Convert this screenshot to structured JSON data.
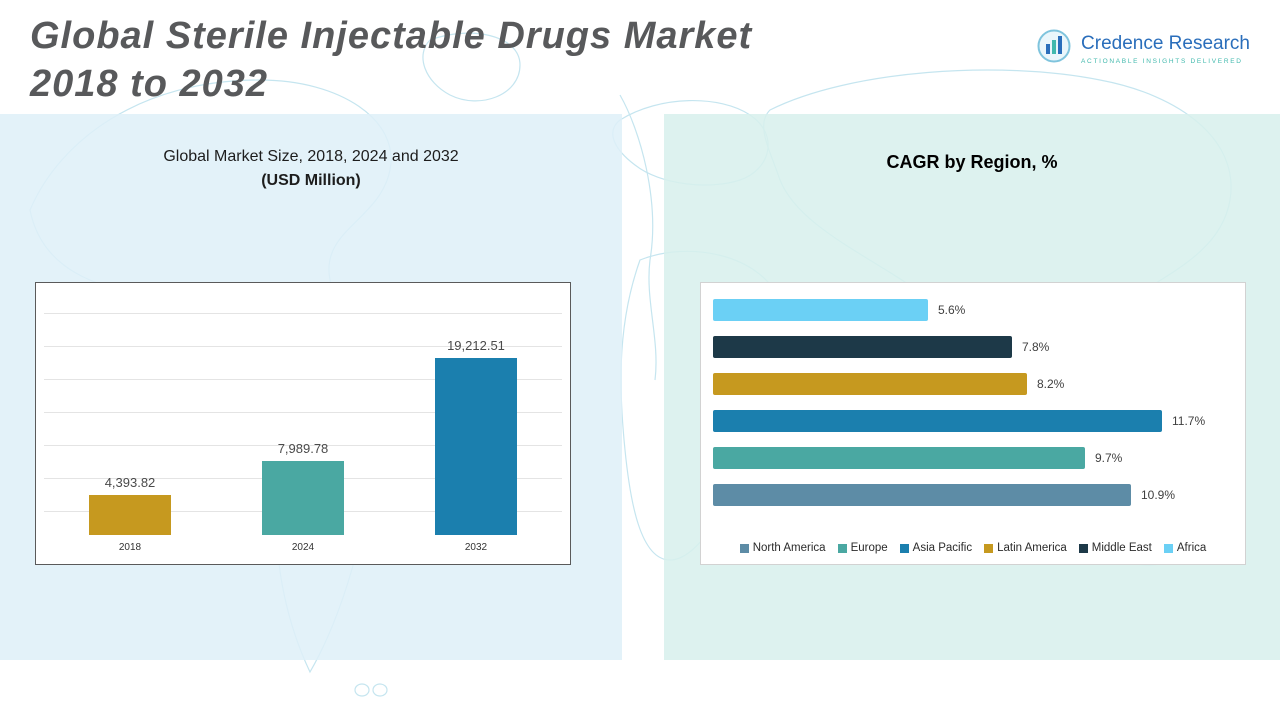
{
  "header": {
    "title_line1": "Global Sterile Injectable Drugs Market",
    "title_line2": "2018 to 2032",
    "logo": {
      "name": "Credence Research",
      "tagline": "Actionable Insights Delivered"
    }
  },
  "panels": {
    "market_size": {
      "title_line1": "Global Market Size, 2018, 2024 and 2032",
      "title_line2": "(USD Million)"
    },
    "cagr": {
      "title": "CAGR by Region, %"
    }
  },
  "chart_data": [
    {
      "type": "bar",
      "title": "Global Market Size, 2018, 2024 and 2032 (USD Million)",
      "categories": [
        "2018",
        "2024",
        "2032"
      ],
      "values": [
        4393.82,
        7989.78,
        19212.51
      ],
      "value_labels": [
        "4,393.82",
        "7,989.78",
        "19,212.51"
      ],
      "colors": [
        "#c6991f",
        "#4aa8a2",
        "#1b7fae"
      ],
      "xlabel": "",
      "ylabel": "USD Million",
      "ylim": [
        0,
        20000
      ],
      "grid": true,
      "legend_position": "none"
    },
    {
      "type": "bar",
      "orientation": "horizontal",
      "title": "CAGR by Region, %",
      "categories": [
        "Africa",
        "Middle East",
        "Latin America",
        "Asia Pacific",
        "Europe",
        "North America"
      ],
      "values": [
        5.6,
        7.8,
        8.2,
        11.7,
        9.7,
        10.9
      ],
      "value_labels": [
        "5.6%",
        "7.8%",
        "8.2%",
        "11.7%",
        "9.7%",
        "10.9%"
      ],
      "colors": [
        "#6bd0f5",
        "#1d3948",
        "#c6991f",
        "#1b7fae",
        "#4aa8a2",
        "#5d8ca6"
      ],
      "xlabel": "CAGR %",
      "xlim": [
        0,
        12
      ],
      "grid": false,
      "legend_position": "bottom",
      "legend": [
        {
          "label": "North America",
          "color": "#5d8ca6"
        },
        {
          "label": "Europe",
          "color": "#4aa8a2"
        },
        {
          "label": "Asia Pacific",
          "color": "#1b7fae"
        },
        {
          "label": "Latin America",
          "color": "#c6991f"
        },
        {
          "label": "Middle East",
          "color": "#1d3948"
        },
        {
          "label": "Africa",
          "color": "#6bd0f5"
        }
      ]
    }
  ]
}
